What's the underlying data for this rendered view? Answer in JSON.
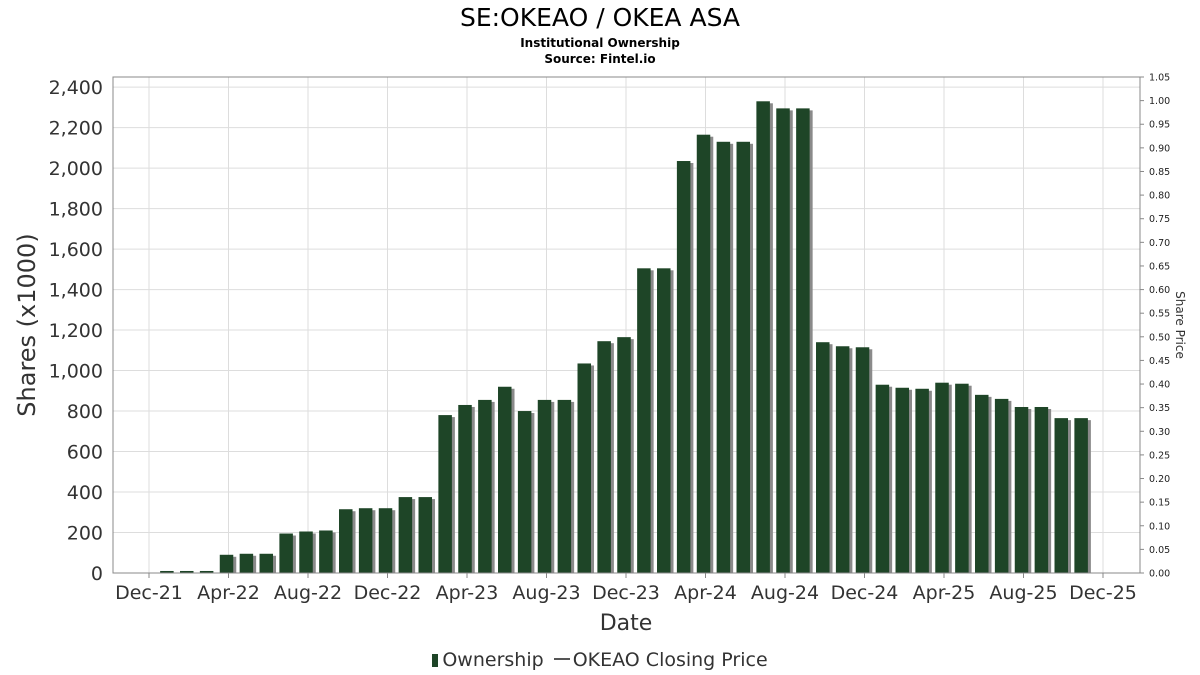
{
  "title": "SE:OKEAO / OKEA ASA",
  "subtitle": "Institutional Ownership",
  "source": "Source: Fintel.io",
  "legend": {
    "ownership": "Ownership",
    "price": "OKEAO Closing Price"
  },
  "colors": {
    "bar": "#1e4527",
    "bar_shadow": "#8a8a8a",
    "grid": "#dddddd",
    "axis": "#888888"
  },
  "chart_data": {
    "type": "bar",
    "xlabel": "Date",
    "ylabel": "Shares (x1000)",
    "y2label": "Share Price",
    "ylim": [
      0,
      2450
    ],
    "y2lim": [
      0,
      1.05
    ],
    "yticks": [
      0,
      200,
      400,
      600,
      800,
      1000,
      1200,
      1400,
      1600,
      1800,
      2000,
      2200,
      2400
    ],
    "ytick_labels": [
      "0",
      "200",
      "400",
      "600",
      "800",
      "1,000",
      "1,200",
      "1,400",
      "1,600",
      "1,800",
      "2,000",
      "2,200",
      "2,400"
    ],
    "y2ticks": [
      0,
      0.05,
      0.1,
      0.15,
      0.2,
      0.25,
      0.3,
      0.35,
      0.4,
      0.45,
      0.5,
      0.55,
      0.6,
      0.65,
      0.7,
      0.75,
      0.8,
      0.85,
      0.9,
      0.95,
      1.0,
      1.05
    ],
    "y2tick_labels": [
      "0.00",
      "0.05",
      "0.10",
      "0.15",
      "0.20",
      "0.25",
      "0.30",
      "0.35",
      "0.40",
      "0.45",
      "0.50",
      "0.55",
      "0.60",
      "0.65",
      "0.70",
      "0.75",
      "0.80",
      "0.85",
      "0.90",
      "0.95",
      "1.00",
      "1.05"
    ],
    "xtick_labels": [
      "Dec-21",
      "Apr-22",
      "Aug-22",
      "Dec-22",
      "Apr-23",
      "Aug-23",
      "Dec-23",
      "Apr-24",
      "Aug-24",
      "Dec-24",
      "Apr-25",
      "Aug-25",
      "Dec-25"
    ],
    "x_start": "2021-12",
    "x_period_months": 4,
    "grid": true,
    "legend_position": "bottom",
    "series": [
      {
        "name": "Ownership",
        "values": [
          10,
          10,
          10,
          90,
          95,
          95,
          195,
          205,
          210,
          315,
          320,
          320,
          375,
          375,
          780,
          830,
          855,
          920,
          800,
          855,
          855,
          1035,
          1145,
          1165,
          1505,
          1505,
          2035,
          2165,
          2130,
          2130,
          2330,
          2295,
          2295,
          1140,
          1120,
          1115,
          930,
          915,
          910,
          940,
          935,
          880,
          860,
          820,
          820,
          765,
          765
        ]
      },
      {
        "name": "OKEAO Closing Price",
        "values": []
      }
    ]
  }
}
